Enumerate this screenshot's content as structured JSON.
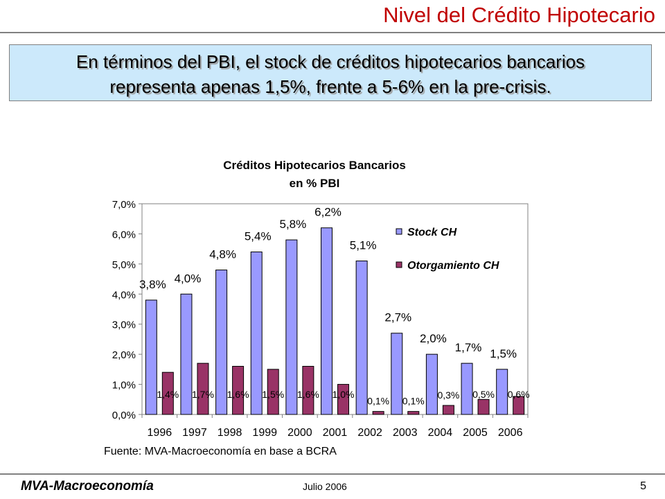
{
  "slide": {
    "title": "Nivel del Crédito Hipotecario",
    "callout_line1": "En términos del PBI, el stock de créditos hipotecarios bancarios",
    "callout_line2": "representa apenas 1,5%, frente a 5-6% en la pre-crisis."
  },
  "chart_data": {
    "type": "bar",
    "title_line1": "Créditos Hipotecarios Bancarios",
    "title_line2": "en % PBI",
    "categories": [
      "1996",
      "1997",
      "1998",
      "1999",
      "2000",
      "2001",
      "2002",
      "2003",
      "2004",
      "2005",
      "2006"
    ],
    "series": [
      {
        "name": "Stock CH",
        "color": "#9999ff",
        "values": [
          3.8,
          4.0,
          4.8,
          5.4,
          5.8,
          6.2,
          5.1,
          2.7,
          2.0,
          1.7,
          1.5
        ],
        "labels": [
          "3,8%",
          "4,0%",
          "4,8%",
          "5,4%",
          "5,8%",
          "6,2%",
          "5,1%",
          "2,7%",
          "2,0%",
          "1,7%",
          "1,5%"
        ]
      },
      {
        "name": "Otorgamiento CH",
        "color": "#993366",
        "values": [
          1.4,
          1.7,
          1.6,
          1.5,
          1.6,
          1.0,
          0.1,
          0.1,
          0.3,
          0.5,
          0.6
        ],
        "labels": [
          "1,4%",
          "1,7%",
          "1,6%",
          "1,5%",
          "1,6%",
          "1,0%",
          "0,1%",
          "0,1%",
          "0,3%",
          "0,5%",
          "0,6%"
        ]
      }
    ],
    "y_ticks": [
      "0,0%",
      "1,0%",
      "2,0%",
      "3,0%",
      "4,0%",
      "5,0%",
      "6,0%",
      "7,0%"
    ],
    "ylim": [
      0,
      7
    ],
    "grid": false,
    "legend_position": "top-right",
    "source": "Fuente: MVA-Macroeconomía en base a BCRA"
  },
  "footer": {
    "brand": "MVA-Macroeconomía",
    "date": "Julio 2006",
    "page": "5"
  }
}
